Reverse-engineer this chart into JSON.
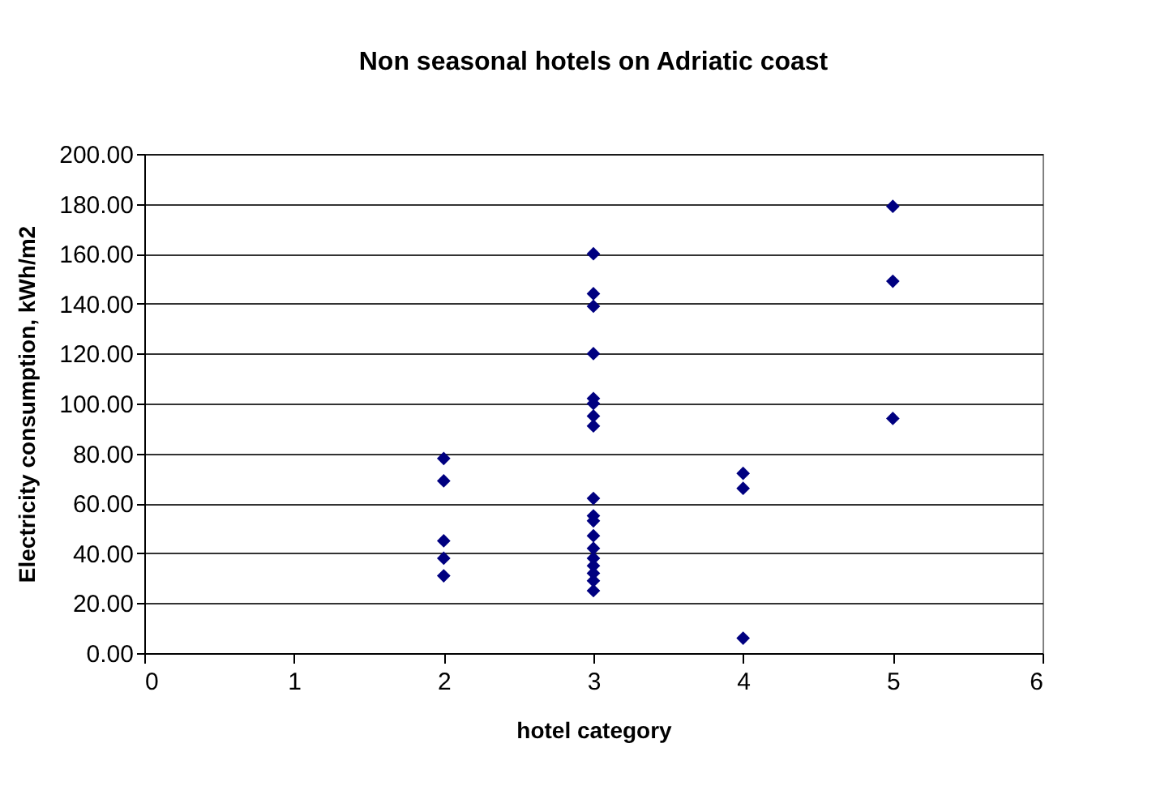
{
  "chart_data": {
    "type": "scatter",
    "title": "Non seasonal hotels on Adriatic coast",
    "xlabel": "hotel category",
    "ylabel": "Electricity consumption, kWh/m2",
    "series": [
      {
        "color": "#000080",
        "x": [
          2,
          2,
          2,
          2,
          2,
          3,
          3,
          3,
          3,
          3,
          3,
          3,
          3,
          3,
          3,
          3,
          3,
          3,
          3,
          3,
          3,
          3,
          3,
          4,
          4,
          4,
          5,
          5,
          5
        ],
        "values": [
          78,
          69,
          45,
          38,
          31,
          160,
          144,
          139,
          120,
          102,
          100,
          95,
          91,
          62,
          55,
          53,
          47,
          42,
          38,
          35,
          32,
          29,
          25,
          72,
          66,
          6,
          179,
          149,
          94
        ]
      }
    ],
    "marker": "diamond",
    "grid": "y",
    "legend": false,
    "xlim": [
      0,
      6
    ],
    "xticks": [
      0,
      1,
      2,
      3,
      4,
      5,
      6
    ],
    "ylim": [
      0,
      200
    ],
    "yticks": [
      {
        "value": 0,
        "label": "0.00"
      },
      {
        "value": 20,
        "label": "20.00"
      },
      {
        "value": 40,
        "label": "40.00"
      },
      {
        "value": 60,
        "label": "60.00"
      },
      {
        "value": 80,
        "label": "80.00"
      },
      {
        "value": 100,
        "label": "100.00"
      },
      {
        "value": 120,
        "label": "120.00"
      },
      {
        "value": 140,
        "label": "140.00"
      },
      {
        "value": 160,
        "label": "160.00"
      },
      {
        "value": 180,
        "label": "180.00"
      },
      {
        "value": 200,
        "label": "200.00"
      }
    ]
  }
}
